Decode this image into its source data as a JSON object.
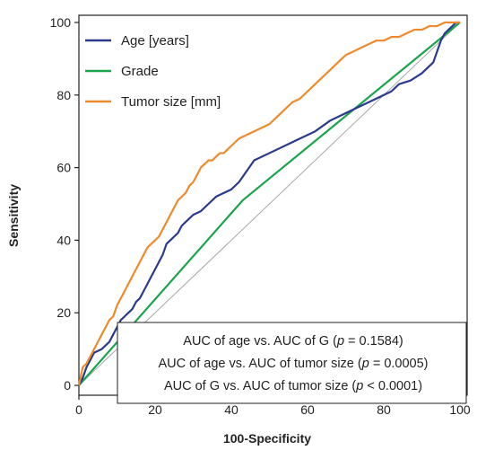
{
  "chart_data": {
    "type": "line",
    "xlabel": "100-Specificity",
    "ylabel": "Sensitivity",
    "xlim": [
      0,
      100
    ],
    "ylim": [
      0,
      100
    ],
    "xticks": [
      0,
      20,
      40,
      60,
      80,
      100
    ],
    "yticks": [
      0,
      20,
      40,
      60,
      80,
      100
    ],
    "grid": false,
    "legend_position": "top-left",
    "series": [
      {
        "name": "Age [years]",
        "color": "#2b3a8c",
        "x": [
          0,
          1,
          2,
          3,
          4,
          6,
          7,
          8,
          9,
          10,
          11,
          12,
          13,
          14,
          15,
          16,
          17,
          18,
          19,
          20,
          21,
          22,
          23,
          24,
          25,
          26,
          27,
          28,
          29,
          30,
          32,
          34,
          36,
          38,
          40,
          42,
          44,
          46,
          50,
          54,
          58,
          62,
          66,
          70,
          74,
          78,
          82,
          84,
          87,
          90,
          92,
          93,
          94,
          95,
          96,
          97,
          98,
          99,
          100
        ],
        "y": [
          0,
          2,
          5,
          7,
          9,
          10,
          11,
          12,
          14,
          16,
          18,
          19,
          20,
          21,
          23,
          24,
          26,
          28,
          30,
          32,
          34,
          36,
          39,
          40,
          41,
          42,
          44,
          45,
          46,
          47,
          48,
          50,
          52,
          53,
          54,
          56,
          59,
          62,
          64,
          66,
          68,
          70,
          73,
          75,
          77,
          79,
          81,
          83,
          84,
          86,
          88,
          89,
          92,
          95,
          97,
          98,
          99,
          100,
          100
        ]
      },
      {
        "name": "Grade",
        "color": "#1aa44c",
        "x": [
          0,
          43,
          100
        ],
        "y": [
          0,
          51,
          100
        ]
      },
      {
        "name": "Tumor size [mm]",
        "color": "#ee8a2b",
        "x": [
          0,
          1,
          2,
          3,
          4,
          5,
          6,
          7,
          8,
          9,
          10,
          11,
          12,
          13,
          14,
          15,
          16,
          17,
          18,
          19,
          20,
          21,
          22,
          23,
          24,
          25,
          26,
          27,
          28,
          29,
          30,
          31,
          32,
          33,
          34,
          35,
          36,
          37,
          38,
          39,
          40,
          42,
          44,
          46,
          48,
          50,
          52,
          54,
          56,
          58,
          60,
          62,
          64,
          66,
          68,
          70,
          72,
          74,
          76,
          78,
          80,
          82,
          84,
          86,
          88,
          90,
          92,
          94,
          96,
          98,
          100
        ],
        "y": [
          0,
          5,
          6,
          8,
          10,
          12,
          14,
          16,
          18,
          19,
          22,
          24,
          26,
          28,
          30,
          32,
          34,
          36,
          38,
          39,
          40,
          41,
          43,
          45,
          47,
          49,
          51,
          52,
          53,
          55,
          56,
          58,
          60,
          61,
          62,
          62,
          63,
          64,
          64,
          65,
          66,
          68,
          69,
          70,
          71,
          72,
          74,
          76,
          78,
          79,
          81,
          83,
          85,
          87,
          89,
          91,
          92,
          93,
          94,
          95,
          95,
          96,
          96,
          97,
          98,
          98,
          99,
          99,
          100,
          100,
          100
        ]
      }
    ],
    "reference_line": {
      "x": [
        0,
        100
      ],
      "y": [
        0,
        100
      ],
      "color": "#a8a8a8"
    },
    "annotations": [
      {
        "pre": "AUC of age vs. AUC of G (",
        "var": "p",
        "post": " = 0.1584)"
      },
      {
        "pre": "AUC of age vs. AUC of tumor size (",
        "var": "p",
        "post": " = 0.0005)"
      },
      {
        "pre": "AUC of G vs. AUC of tumor size (",
        "var": "p",
        "post": " < 0.0001)"
      }
    ]
  }
}
